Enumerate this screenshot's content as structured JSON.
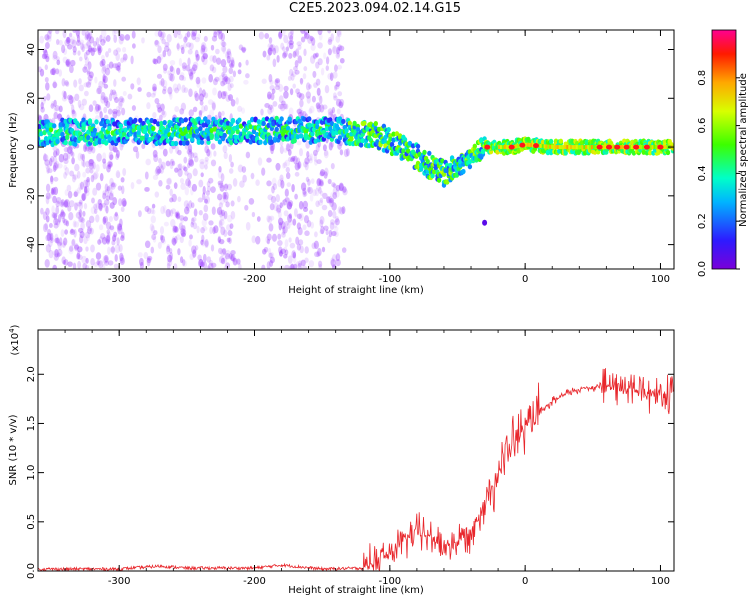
{
  "figure": {
    "title": "C2E5.2023.094.02.14.G15"
  },
  "colors": {
    "snr_line": "#e8262b",
    "axis": "#000000"
  },
  "chart_data": [
    {
      "type": "heatmap",
      "xlabel": "Height of straight line (km)",
      "ylabel": "Frequency (Hz)",
      "xlim": [
        -360,
        110
      ],
      "ylim": [
        -50,
        48
      ],
      "xticks": [
        -300,
        -200,
        -100,
        0,
        100
      ],
      "yticks": [
        -40,
        -20,
        0,
        20,
        40
      ],
      "colorbar": {
        "label": "Normalized spectral amplitude",
        "range": [
          0.0,
          1.0
        ],
        "ticks": [
          "0.0",
          "0.2",
          "0.4",
          "0.6",
          "0.8"
        ],
        "colormap": "rainbow"
      },
      "band_center": [
        {
          "x": -355,
          "y": 6
        },
        {
          "x": -140,
          "y": 7
        },
        {
          "x": -110,
          "y": 5
        },
        {
          "x": -90,
          "y": 0
        },
        {
          "x": -75,
          "y": -6
        },
        {
          "x": -60,
          "y": -11
        },
        {
          "x": -50,
          "y": -8
        },
        {
          "x": -40,
          "y": -4
        },
        {
          "x": -30,
          "y": 0
        },
        {
          "x": -10,
          "y": 0
        },
        {
          "x": 0,
          "y": 1
        },
        {
          "x": 20,
          "y": 0
        },
        {
          "x": 110,
          "y": 0
        }
      ]
    },
    {
      "type": "line",
      "xlabel": "Height of straight line (km)",
      "ylabel": "SNR (10 * v/v)",
      "y_multiplier": "(x10",
      "y_multiplier_exp": "4",
      "y_multiplier_close": ")",
      "xlim": [
        -360,
        110
      ],
      "ylim": [
        0,
        2.45
      ],
      "xticks": [
        -300,
        -200,
        -100,
        0,
        100
      ],
      "yticks": [
        "0.0",
        "0.5",
        "1.0",
        "1.5",
        "2.0"
      ],
      "series": [
        {
          "color": "#e8262b",
          "points": [
            [
              -360,
              0.02
            ],
            [
              -300,
              0.02
            ],
            [
              -270,
              0.05
            ],
            [
              -250,
              0.03
            ],
            [
              -200,
              0.03
            ],
            [
              -180,
              0.06
            ],
            [
              -150,
              0.02
            ],
            [
              -120,
              0.03
            ],
            [
              -110,
              0.1
            ],
            [
              -100,
              0.18
            ],
            [
              -90,
              0.3
            ],
            [
              -85,
              0.35
            ],
            [
              -80,
              0.4
            ],
            [
              -70,
              0.35
            ],
            [
              -60,
              0.25
            ],
            [
              -50,
              0.3
            ],
            [
              -40,
              0.4
            ],
            [
              -30,
              0.7
            ],
            [
              -20,
              1.0
            ],
            [
              -10,
              1.3
            ],
            [
              0,
              1.45
            ],
            [
              10,
              1.6
            ],
            [
              20,
              1.72
            ],
            [
              30,
              1.8
            ],
            [
              40,
              1.85
            ],
            [
              50,
              1.87
            ],
            [
              60,
              1.88
            ],
            [
              70,
              1.88
            ],
            [
              80,
              1.85
            ],
            [
              90,
              1.82
            ],
            [
              100,
              1.8
            ],
            [
              110,
              1.78
            ]
          ]
        }
      ]
    }
  ]
}
